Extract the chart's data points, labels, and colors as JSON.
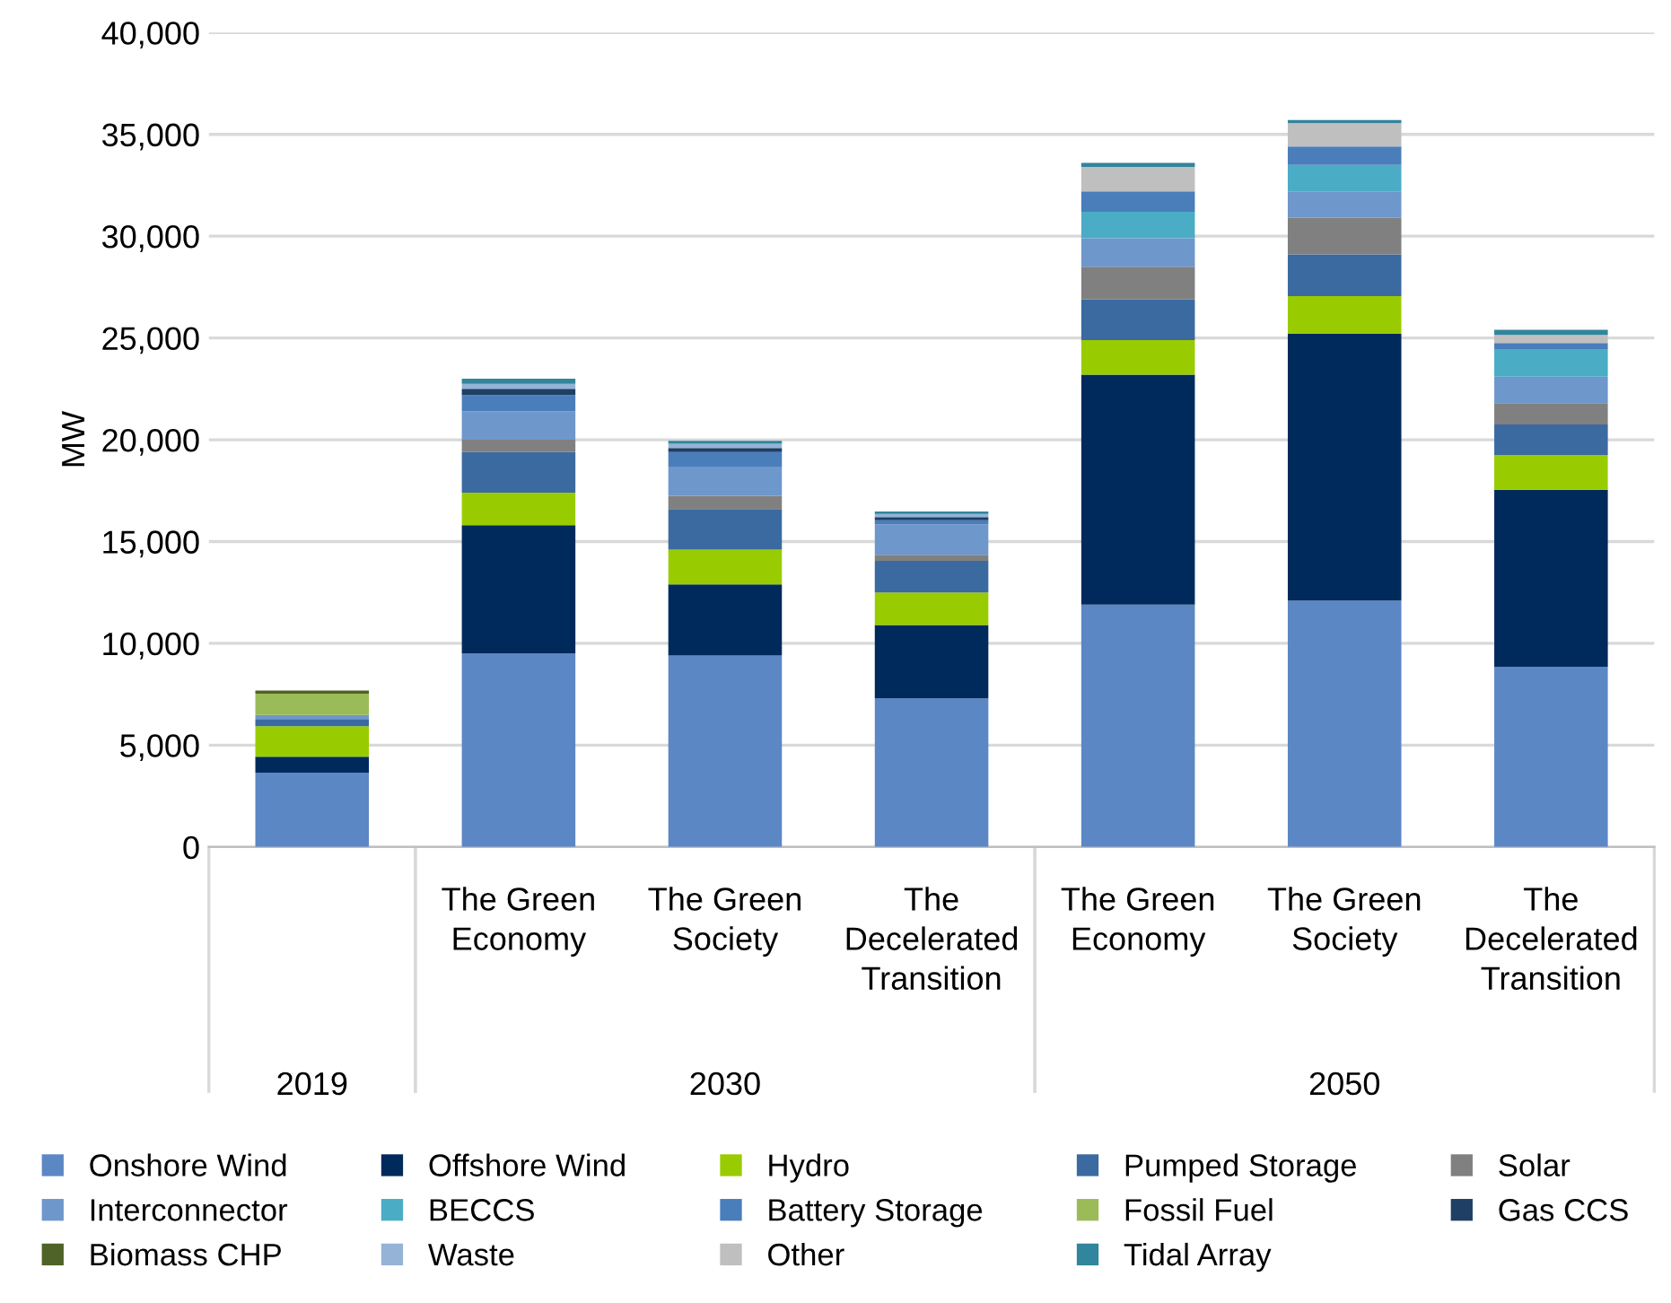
{
  "chart_data": {
    "type": "bar",
    "stacked": true,
    "ylabel": "MW",
    "categories": [
      null,
      "The Green\nEconomy",
      "The Green\nSociety",
      "The\nDecelerated\nTransition",
      "The Green\nEconomy",
      "The Green\nSociety",
      "The\nDecelerated\nTransition"
    ],
    "annotations": [
      "2019",
      "2030",
      "2050"
    ],
    "ylim": [
      0,
      40000
    ],
    "yticks": [
      {
        "value": 0,
        "label": "0"
      },
      {
        "value": 5000,
        "label": "5,000"
      },
      {
        "value": 10000,
        "label": "10,000"
      },
      {
        "value": 15000,
        "label": "15,000"
      },
      {
        "value": 20000,
        "label": "20,000"
      },
      {
        "value": 25000,
        "label": "25,000"
      },
      {
        "value": 30000,
        "label": "30,000"
      },
      {
        "value": 35000,
        "label": "35,000"
      },
      {
        "value": 40000,
        "label": "40,000"
      }
    ],
    "grid": "y",
    "legend": "bottom",
    "series": [
      {
        "name": "Onshore Wind",
        "color": "#5b87c5",
        "values": [
          3650,
          9500,
          9400,
          7300,
          11900,
          12100,
          8850
        ]
      },
      {
        "name": "Offshore Wind",
        "color": "#002a5c",
        "values": [
          780,
          6300,
          3500,
          3600,
          11300,
          13100,
          8700
        ]
      },
      {
        "name": "Hydro",
        "color": "#99cc00",
        "values": [
          1500,
          1600,
          1700,
          1600,
          1700,
          1850,
          1700
        ]
      },
      {
        "name": "Pumped Storage",
        "color": "#3a6aa0",
        "values": [
          350,
          2000,
          2000,
          1550,
          2000,
          2050,
          1500
        ]
      },
      {
        "name": "Solar",
        "color": "#808080",
        "values": [
          0,
          600,
          650,
          300,
          1600,
          1800,
          1050
        ]
      },
      {
        "name": "Interconnector",
        "color": "#6e97cb",
        "values": [
          200,
          1400,
          1400,
          1500,
          1400,
          1300,
          1300
        ]
      },
      {
        "name": "BECCS",
        "color": "#4bacc6",
        "values": [
          0,
          0,
          0,
          0,
          1300,
          1300,
          1350
        ]
      },
      {
        "name": "Battery Storage",
        "color": "#4a7ebb",
        "values": [
          0,
          800,
          750,
          200,
          1000,
          900,
          300
        ]
      },
      {
        "name": "Fossil Fuel",
        "color": "#9bbb59",
        "values": [
          1050,
          0,
          0,
          0,
          0,
          0,
          0
        ]
      },
      {
        "name": "Gas CCS",
        "color": "#1f3f64",
        "values": [
          0,
          300,
          200,
          150,
          0,
          0,
          0
        ]
      },
      {
        "name": "Biomass CHP",
        "color": "#4f6228",
        "values": [
          150,
          0,
          0,
          0,
          0,
          0,
          0
        ]
      },
      {
        "name": "Waste",
        "color": "#95b3d7",
        "values": [
          0,
          250,
          200,
          150,
          0,
          0,
          0
        ]
      },
      {
        "name": "Other",
        "color": "#bfbfbf",
        "values": [
          0,
          0,
          0,
          0,
          1200,
          1150,
          400
        ]
      },
      {
        "name": "Tidal Array",
        "color": "#31859c",
        "values": [
          0,
          250,
          150,
          130,
          200,
          150,
          250
        ]
      }
    ]
  }
}
